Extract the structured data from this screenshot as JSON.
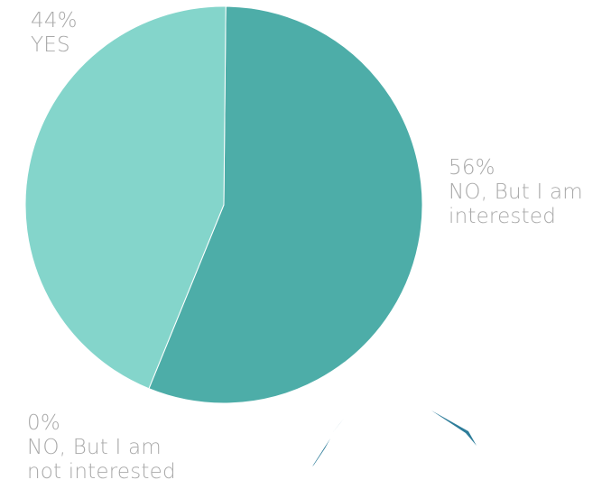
{
  "chart_data": {
    "type": "pie",
    "slices": [
      {
        "label": "YES",
        "value": 44,
        "display_value": "44%",
        "label_lines": [
          "YES"
        ],
        "color": "#84d5cb"
      },
      {
        "label": "NO, But I am interested",
        "value": 56,
        "display_value": "56%",
        "label_lines": [
          "NO, But I am",
          "interested"
        ],
        "color": "#4dada8"
      },
      {
        "label": "NO, But I am not interested",
        "value": 0,
        "display_value": "0%",
        "label_lines": [
          "NO, But I am",
          "not interested"
        ],
        "color": "#2e7d9a"
      }
    ],
    "title": "",
    "legend": "none",
    "label_color": "#a9a9a9",
    "stroke_color": "#ffffff"
  }
}
